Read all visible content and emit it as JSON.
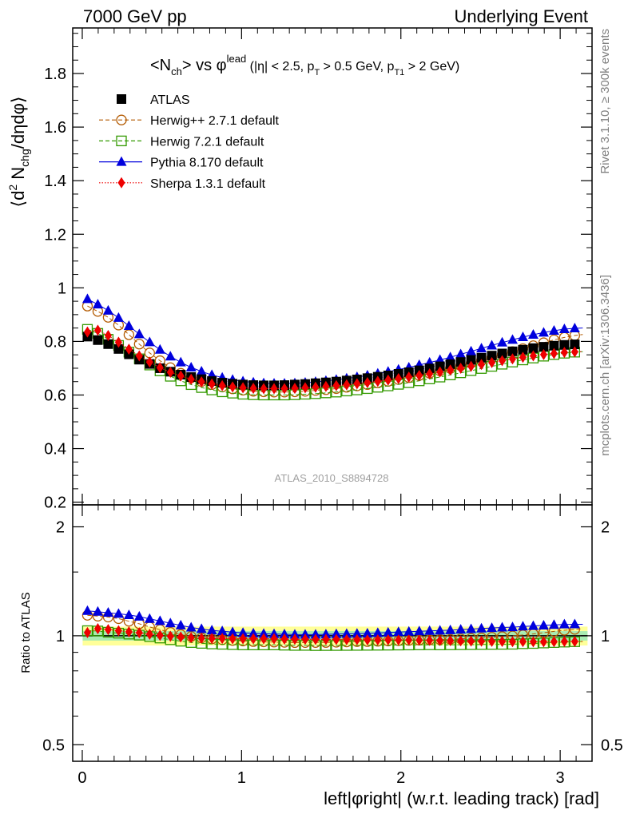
{
  "header": {
    "left": "7000 GeV pp",
    "right": "Underlying Event"
  },
  "side_labels": {
    "rivet": "Rivet 3.1.10, ≥ 300k events",
    "mcplots": "mcplots.cern.ch [arXiv:1306.3436]"
  },
  "chart_data": [
    {
      "type": "line",
      "panel": "main",
      "title_parts": {
        "a": "<N",
        "a_sub": "ch",
        "b": "> vs φ",
        "b_sup": "lead",
        "c": " (|η| < 2.5, p",
        "c_sub": "T",
        "d": " > 0.5 GeV, p",
        "d_sub": "T1",
        "e": " > 2 GeV)"
      },
      "ylabel_parts": {
        "a": "⟨d",
        "a_sup": "2",
        "b": " N",
        "b_sub": "chg",
        "c": "/dηdφ⟩"
      },
      "watermark": "ATLAS_2010_S8894728",
      "ylim": [
        0.19,
        1.97
      ],
      "yticks": [
        0.2,
        0.4,
        0.6,
        0.8,
        1,
        1.2,
        1.4,
        1.6,
        1.8
      ],
      "ytick_labels": [
        "0.2",
        "0.4",
        "0.6",
        "0.8",
        "1",
        "1.2",
        "1.4",
        "1.6",
        "1.8"
      ],
      "x": [
        0.0325,
        0.0976,
        0.1627,
        0.2278,
        0.2929,
        0.3579,
        0.423,
        0.4881,
        0.5532,
        0.6183,
        0.6834,
        0.7484,
        0.8135,
        0.8786,
        0.9437,
        1.0088,
        1.0739,
        1.1389,
        1.204,
        1.2691,
        1.3342,
        1.3993,
        1.4644,
        1.5294,
        1.5945,
        1.6596,
        1.7247,
        1.7898,
        1.8549,
        1.9199,
        1.985,
        2.0501,
        2.1152,
        2.1803,
        2.2454,
        2.3104,
        2.3755,
        2.4406,
        2.5057,
        2.5708,
        2.6359,
        2.7009,
        2.766,
        2.8311,
        2.8962,
        2.9613,
        3.0264,
        3.0914,
        3.1416
      ],
      "series": [
        {
          "name": "ATLAS",
          "color": "#000000",
          "marker": "square-filled",
          "line": "none",
          "values": [
            0.818,
            0.805,
            0.79,
            0.772,
            0.752,
            0.732,
            0.716,
            0.7,
            0.687,
            0.676,
            0.667,
            0.659,
            0.652,
            0.646,
            0.642,
            0.639,
            0.637,
            0.636,
            0.636,
            0.637,
            0.639,
            0.641,
            0.644,
            0.647,
            0.65,
            0.654,
            0.658,
            0.663,
            0.668,
            0.673,
            0.679,
            0.685,
            0.692,
            0.699,
            0.707,
            0.715,
            0.723,
            0.731,
            0.739,
            0.747,
            0.755,
            0.763,
            0.769,
            0.775,
            0.78,
            0.784,
            0.787,
            0.789,
            0.79
          ]
        },
        {
          "name": "Herwig++ 2.7.1 default",
          "color": "#b35a00",
          "marker": "circle-open",
          "line": "dashed",
          "values": [
            0.932,
            0.912,
            0.89,
            0.861,
            0.825,
            0.79,
            0.757,
            0.728,
            0.702,
            0.681,
            0.664,
            0.65,
            0.639,
            0.63,
            0.623,
            0.618,
            0.614,
            0.612,
            0.611,
            0.611,
            0.612,
            0.614,
            0.617,
            0.62,
            0.624,
            0.629,
            0.634,
            0.639,
            0.645,
            0.651,
            0.658,
            0.665,
            0.673,
            0.681,
            0.69,
            0.699,
            0.709,
            0.719,
            0.729,
            0.74,
            0.751,
            0.762,
            0.773,
            0.784,
            0.795,
            0.806,
            0.815,
            0.822,
            0.826
          ]
        },
        {
          "name": "Herwig 7.2.1 default",
          "color": "#339900",
          "marker": "square-open",
          "line": "dashed",
          "values": [
            0.845,
            0.83,
            0.808,
            0.785,
            0.76,
            0.735,
            0.712,
            0.69,
            0.67,
            0.653,
            0.639,
            0.628,
            0.619,
            0.612,
            0.607,
            0.603,
            0.601,
            0.6,
            0.6,
            0.6,
            0.601,
            0.603,
            0.605,
            0.608,
            0.611,
            0.615,
            0.619,
            0.624,
            0.629,
            0.634,
            0.64,
            0.646,
            0.653,
            0.66,
            0.667,
            0.675,
            0.683,
            0.691,
            0.699,
            0.707,
            0.715,
            0.723,
            0.731,
            0.738,
            0.745,
            0.751,
            0.756,
            0.76,
            0.762
          ]
        },
        {
          "name": "Pythia 8.170 default",
          "color": "#0000dd",
          "marker": "triangle-filled",
          "line": "solid",
          "values": [
            0.958,
            0.938,
            0.915,
            0.888,
            0.858,
            0.827,
            0.797,
            0.769,
            0.744,
            0.722,
            0.703,
            0.688,
            0.675,
            0.665,
            0.657,
            0.651,
            0.647,
            0.644,
            0.643,
            0.643,
            0.644,
            0.646,
            0.649,
            0.653,
            0.657,
            0.662,
            0.667,
            0.673,
            0.68,
            0.687,
            0.695,
            0.703,
            0.712,
            0.721,
            0.731,
            0.741,
            0.752,
            0.763,
            0.774,
            0.785,
            0.796,
            0.806,
            0.816,
            0.825,
            0.833,
            0.84,
            0.846,
            0.849,
            0.85
          ]
        },
        {
          "name": "Sherpa 1.3.1 default",
          "color": "#ee0000",
          "marker": "diamond-filled",
          "line": "dotted",
          "values": [
            0.835,
            0.842,
            0.822,
            0.797,
            0.771,
            0.746,
            0.723,
            0.702,
            0.685,
            0.671,
            0.659,
            0.649,
            0.641,
            0.635,
            0.63,
            0.627,
            0.625,
            0.624,
            0.624,
            0.624,
            0.625,
            0.627,
            0.629,
            0.632,
            0.635,
            0.638,
            0.642,
            0.646,
            0.651,
            0.656,
            0.661,
            0.667,
            0.673,
            0.679,
            0.686,
            0.693,
            0.7,
            0.707,
            0.714,
            0.721,
            0.728,
            0.735,
            0.741,
            0.746,
            0.751,
            0.755,
            0.759,
            0.761,
            0.762
          ]
        }
      ]
    },
    {
      "type": "line",
      "panel": "ratio",
      "ylabel": "Ratio to ATLAS",
      "xlabel": "left|φright| (w.r.t. leading track) [rad]",
      "yscale": "log",
      "ylim": [
        0.45,
        2.3
      ],
      "yticks": [
        0.5,
        1,
        2
      ],
      "ytick_labels": [
        "0.5",
        "1",
        "2"
      ],
      "xlim": [
        -0.06,
        3.2
      ],
      "xticks": [
        0,
        1,
        2,
        3
      ],
      "xtick_labels": [
        "0",
        "1",
        "2",
        "3"
      ],
      "uncertainty_band": {
        "inner": 0.03,
        "outer": 0.06,
        "inner_color": "#a8ecb2",
        "outer_color": "#ffff99"
      }
    }
  ]
}
